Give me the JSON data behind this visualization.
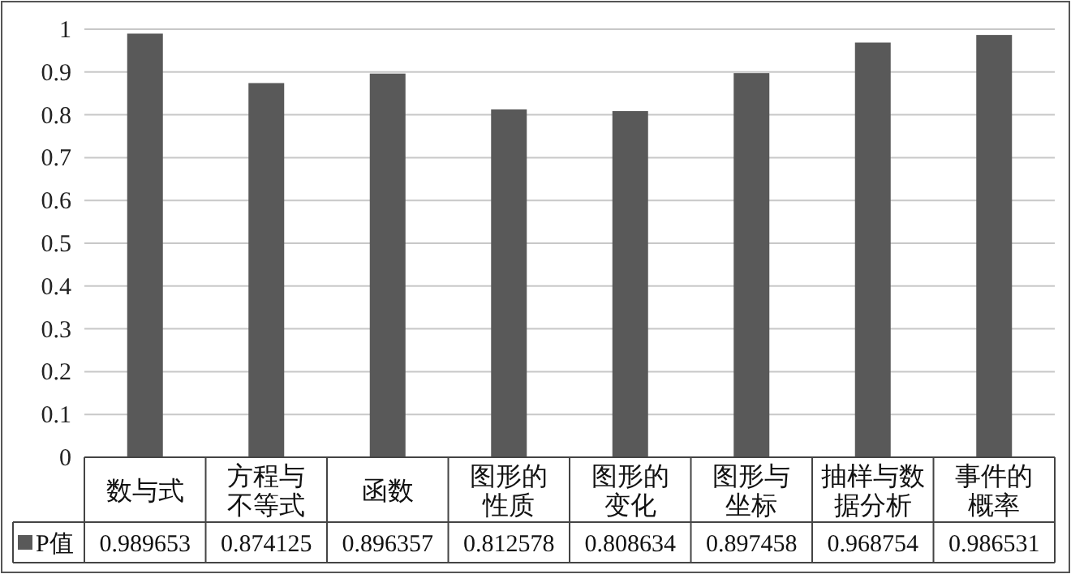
{
  "chart_data": {
    "type": "bar",
    "categories": [
      "数与式",
      "方程与不等式",
      "函数",
      "图形的性质",
      "图形的变化",
      "图形与坐标",
      "抽样与数据分析",
      "事件的概率"
    ],
    "series": [
      {
        "name": "P值",
        "color": "#595959",
        "values": [
          0.989653,
          0.874125,
          0.896357,
          0.812578,
          0.808634,
          0.897458,
          0.968754,
          0.986531
        ]
      }
    ],
    "ylim": [
      0,
      1
    ],
    "yticks": [
      0,
      0.1,
      0.2,
      0.3,
      0.4,
      0.5,
      0.6,
      0.7,
      0.8,
      0.9,
      1
    ],
    "grid": "y",
    "data_labels": true,
    "legend": "bottom"
  }
}
